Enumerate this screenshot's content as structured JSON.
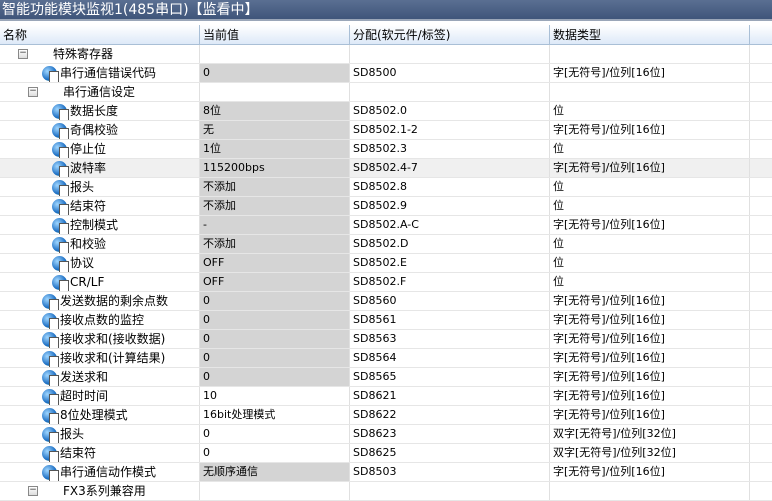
{
  "window": {
    "title": "智能功能模块监视1(485串口)【监看中】"
  },
  "columns": [
    "名称",
    "当前值",
    "分配(软元件/标签)",
    "数据类型"
  ],
  "rows": [
    {
      "level": 0,
      "group": true,
      "name": "特殊寄存器",
      "value": "",
      "device": "",
      "type": ""
    },
    {
      "level": 1,
      "name": "串行通信错误代码",
      "value": "0",
      "gray": true,
      "device": "SD8500",
      "type": "字[无符号]/位列[16位]"
    },
    {
      "level": 1,
      "group": true,
      "name": "串行通信设定",
      "value": "",
      "device": "",
      "type": ""
    },
    {
      "level": 2,
      "name": "数据长度",
      "value": "8位",
      "gray": true,
      "device": "SD8502.0",
      "type": "位"
    },
    {
      "level": 2,
      "name": "奇偶校验",
      "value": "无",
      "gray": true,
      "device": "SD8502.1-2",
      "type": "字[无符号]/位列[16位]"
    },
    {
      "level": 2,
      "name": "停止位",
      "value": "1位",
      "gray": true,
      "device": "SD8502.3",
      "type": "位"
    },
    {
      "level": 2,
      "name": "波特率",
      "value": "115200bps",
      "gray": true,
      "device": "SD8502.4-7",
      "type": "字[无符号]/位列[16位]",
      "selected": true
    },
    {
      "level": 2,
      "name": "报头",
      "value": "不添加",
      "gray": true,
      "device": "SD8502.8",
      "type": "位"
    },
    {
      "level": 2,
      "name": "结束符",
      "value": "不添加",
      "gray": true,
      "device": "SD8502.9",
      "type": "位"
    },
    {
      "level": 2,
      "name": "控制模式",
      "value": "-",
      "gray": true,
      "device": "SD8502.A-C",
      "type": "字[无符号]/位列[16位]"
    },
    {
      "level": 2,
      "name": "和校验",
      "value": "不添加",
      "gray": true,
      "device": "SD8502.D",
      "type": "位"
    },
    {
      "level": 2,
      "name": "协议",
      "value": "OFF",
      "gray": true,
      "device": "SD8502.E",
      "type": "位"
    },
    {
      "level": 2,
      "name": "CR/LF",
      "value": "OFF",
      "gray": true,
      "device": "SD8502.F",
      "type": "位"
    },
    {
      "level": 1,
      "name": "发送数据的剩余点数",
      "value": "0",
      "gray": true,
      "device": "SD8560",
      "type": "字[无符号]/位列[16位]"
    },
    {
      "level": 1,
      "name": "接收点数的监控",
      "value": "0",
      "gray": true,
      "device": "SD8561",
      "type": "字[无符号]/位列[16位]"
    },
    {
      "level": 1,
      "name": "接收求和(接收数据)",
      "value": "0",
      "gray": true,
      "device": "SD8563",
      "type": "字[无符号]/位列[16位]"
    },
    {
      "level": 1,
      "name": "接收求和(计算结果)",
      "value": "0",
      "gray": true,
      "device": "SD8564",
      "type": "字[无符号]/位列[16位]"
    },
    {
      "level": 1,
      "name": "发送求和",
      "value": "0",
      "gray": true,
      "device": "SD8565",
      "type": "字[无符号]/位列[16位]"
    },
    {
      "level": 1,
      "name": "超时时间",
      "value": "10",
      "device": "SD8621",
      "type": "字[无符号]/位列[16位]"
    },
    {
      "level": 1,
      "name": "8位处理模式",
      "value": "16bit处理模式",
      "device": "SD8622",
      "type": "字[无符号]/位列[16位]"
    },
    {
      "level": 1,
      "name": "报头",
      "value": "0",
      "device": "SD8623",
      "type": "双字[无符号]/位列[32位]"
    },
    {
      "level": 1,
      "name": "结束符",
      "value": "0",
      "device": "SD8625",
      "type": "双字[无符号]/位列[32位]"
    },
    {
      "level": 1,
      "name": "串行通信动作模式",
      "value": "无顺序通信",
      "gray": true,
      "device": "SD8503",
      "type": "字[无符号]/位列[16位]"
    },
    {
      "level": 1,
      "group": true,
      "name": "FX3系列兼容用",
      "value": "",
      "device": "",
      "type": ""
    }
  ]
}
